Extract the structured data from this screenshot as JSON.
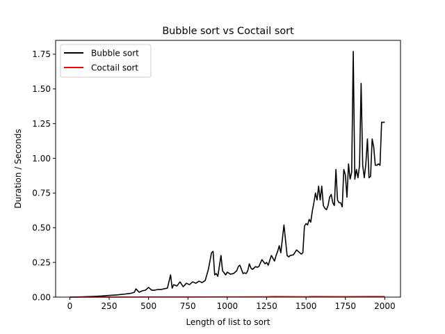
{
  "chart_data": {
    "type": "line",
    "title": "Bubble sort vs Coctail sort",
    "xlabel": "Length of list to sort",
    "ylabel": "Duration / Seconds",
    "xlim": [
      -90,
      2100
    ],
    "ylim": [
      0,
      1.85
    ],
    "xticks": [
      0,
      250,
      500,
      750,
      1000,
      1250,
      1500,
      1750,
      2000
    ],
    "xtick_labels": [
      "0",
      "250",
      "500",
      "750",
      "1000",
      "1250",
      "1500",
      "1750",
      "2000"
    ],
    "yticks": [
      0,
      0.25,
      0.5,
      0.75,
      1.0,
      1.25,
      1.5,
      1.75
    ],
    "ytick_labels": [
      "0.00",
      "0.25",
      "0.50",
      "0.75",
      "1.00",
      "1.25",
      "1.50",
      "1.75"
    ],
    "grid": false,
    "legend": "top-left",
    "series": [
      {
        "name": "Bubble sort",
        "color": "#000000",
        "x": [
          0,
          50,
          100,
          150,
          200,
          250,
          300,
          350,
          390,
          410,
          420,
          440,
          460,
          480,
          500,
          520,
          540,
          560,
          580,
          600,
          620,
          640,
          650,
          660,
          680,
          700,
          720,
          740,
          760,
          780,
          800,
          820,
          840,
          860,
          880,
          900,
          910,
          920,
          930,
          940,
          960,
          970,
          990,
          1000,
          1020,
          1040,
          1060,
          1070,
          1080,
          1100,
          1110,
          1120,
          1130,
          1140,
          1150,
          1160,
          1180,
          1190,
          1200,
          1220,
          1240,
          1250,
          1260,
          1280,
          1300,
          1310,
          1320,
          1330,
          1340,
          1360,
          1380,
          1390,
          1400,
          1420,
          1440,
          1450,
          1460,
          1470,
          1480,
          1490,
          1500,
          1510,
          1520,
          1530,
          1540,
          1550,
          1560,
          1570,
          1580,
          1590,
          1600,
          1610,
          1620,
          1630,
          1640,
          1650,
          1660,
          1670,
          1680,
          1690,
          1700,
          1710,
          1720,
          1730,
          1740,
          1750,
          1760,
          1770,
          1780,
          1790,
          1800,
          1810,
          1820,
          1830,
          1840,
          1850,
          1860,
          1870,
          1880,
          1890,
          1900,
          1910,
          1920,
          1930,
          1940,
          1950,
          1960,
          1970,
          1980,
          1990,
          2000
        ],
        "values": [
          0.0,
          0.001,
          0.003,
          0.005,
          0.008,
          0.012,
          0.016,
          0.022,
          0.028,
          0.035,
          0.06,
          0.035,
          0.045,
          0.05,
          0.07,
          0.05,
          0.05,
          0.055,
          0.055,
          0.06,
          0.065,
          0.16,
          0.065,
          0.09,
          0.08,
          0.11,
          0.075,
          0.1,
          0.09,
          0.11,
          0.1,
          0.115,
          0.105,
          0.12,
          0.2,
          0.32,
          0.33,
          0.16,
          0.17,
          0.15,
          0.3,
          0.19,
          0.16,
          0.18,
          0.165,
          0.17,
          0.19,
          0.22,
          0.23,
          0.17,
          0.175,
          0.17,
          0.19,
          0.24,
          0.21,
          0.2,
          0.22,
          0.215,
          0.22,
          0.27,
          0.24,
          0.25,
          0.23,
          0.3,
          0.26,
          0.3,
          0.33,
          0.37,
          0.32,
          0.52,
          0.3,
          0.29,
          0.3,
          0.305,
          0.34,
          0.33,
          0.32,
          0.31,
          0.32,
          0.51,
          0.53,
          0.52,
          0.56,
          0.54,
          0.62,
          0.68,
          0.75,
          0.7,
          0.8,
          0.7,
          0.8,
          0.66,
          0.64,
          0.63,
          0.66,
          0.72,
          0.74,
          0.68,
          0.66,
          0.92,
          0.7,
          0.68,
          0.68,
          0.65,
          0.92,
          0.88,
          0.72,
          0.96,
          0.85,
          0.9,
          1.77,
          0.85,
          0.92,
          0.86,
          0.95,
          1.54,
          0.95,
          0.86,
          0.96,
          1.14,
          0.86,
          0.87,
          1.14,
          1.08,
          0.95,
          0.95,
          0.96,
          0.95,
          1.26,
          1.26,
          1.26
        ],
        "note_last_point": ""
      },
      {
        "name": "Coctail sort",
        "color": "#ff0000",
        "x": [
          0,
          250,
          500,
          750,
          1000,
          1250,
          1300,
          1500,
          1540,
          1750,
          1900,
          2000
        ],
        "values": [
          0.0,
          0.0005,
          0.001,
          0.001,
          0.0015,
          0.002,
          0.004,
          0.002,
          0.004,
          0.003,
          0.004,
          0.004
        ]
      }
    ]
  }
}
